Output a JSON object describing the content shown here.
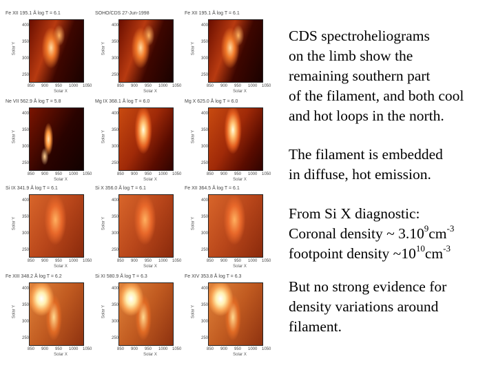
{
  "panels": [
    {
      "label": "Fe XII 195.1 Å log T = 6.1",
      "ylabel": "Solar Y",
      "yticks": [
        "400",
        "350",
        "300",
        "250"
      ],
      "xticks": [
        "850",
        "900",
        "950",
        "1000",
        "1050"
      ],
      "xlabel": "Solar X",
      "tex": "tex-dark"
    },
    {
      "label": "SOHO/CDS 27-Jun-1998",
      "ylabel": "Solar Y",
      "yticks": [
        "400",
        "350",
        "300",
        "250"
      ],
      "xticks": [
        "850",
        "900",
        "950",
        "1000",
        "1050"
      ],
      "xlabel": "Solar X",
      "tex": "tex-dark"
    },
    {
      "label": "Fe XII 195.1 Å log T = 6.1",
      "ylabel": "Solar Y",
      "yticks": [
        "400",
        "350",
        "300",
        "250"
      ],
      "xticks": [
        "850",
        "900",
        "950",
        "1000",
        "1050"
      ],
      "xlabel": "Solar X",
      "tex": "tex-dark"
    },
    {
      "label": "Ne VII 562.9 Å log T = 5.8",
      "ylabel": "Solar Y",
      "yticks": [
        "400",
        "350",
        "300",
        "250"
      ],
      "xticks": [
        "850",
        "900",
        "950",
        "1000",
        "1050"
      ],
      "xlabel": "Solar X",
      "tex": "tex-fil"
    },
    {
      "label": "Mg IX 368.1 Å log T = 6.0",
      "ylabel": "Solar Y",
      "yticks": [
        "400",
        "350",
        "300",
        "250"
      ],
      "xticks": [
        "850",
        "900",
        "950",
        "1000",
        "1050"
      ],
      "xlabel": "Solar X",
      "tex": "tex-hot"
    },
    {
      "label": "Mg X 625.0 Å log T = 6.0",
      "ylabel": "Solar Y",
      "yticks": [
        "400",
        "350",
        "300",
        "250"
      ],
      "xticks": [
        "850",
        "900",
        "950",
        "1000",
        "1050"
      ],
      "xlabel": "Solar X",
      "tex": "tex-hot"
    },
    {
      "label": "Si IX 341.9 Å log T = 6.1",
      "ylabel": "Solar Y",
      "yticks": [
        "400",
        "350",
        "300",
        "250"
      ],
      "xticks": [
        "850",
        "900",
        "950",
        "1000",
        "1050"
      ],
      "xlabel": "Solar X",
      "tex": "tex-warm"
    },
    {
      "label": "Si X 356.0 Å log T = 6.1",
      "ylabel": "Solar Y",
      "yticks": [
        "400",
        "350",
        "300",
        "250"
      ],
      "xticks": [
        "850",
        "900",
        "950",
        "1000",
        "1050"
      ],
      "xlabel": "Solar X",
      "tex": "tex-warm"
    },
    {
      "label": "Fe XII 364.5 Å log T = 6.1",
      "ylabel": "Solar Y",
      "yticks": [
        "400",
        "350",
        "300",
        "250"
      ],
      "xticks": [
        "850",
        "900",
        "950",
        "1000",
        "1050"
      ],
      "xlabel": "Solar X",
      "tex": "tex-warm"
    },
    {
      "label": "Fe XIII 348.2 Å log T = 6.2",
      "ylabel": "Solar Y",
      "yticks": [
        "400",
        "350",
        "300",
        "250"
      ],
      "xticks": [
        "850",
        "900",
        "950",
        "1000",
        "1050"
      ],
      "xlabel": "Solar X",
      "tex": "tex-bright"
    },
    {
      "label": "Si XI 580.9 Å log T = 6.3",
      "ylabel": "Solar Y",
      "yticks": [
        "400",
        "350",
        "300",
        "250"
      ],
      "xticks": [
        "850",
        "900",
        "950",
        "1000",
        "1050"
      ],
      "xlabel": "Solar X",
      "tex": "tex-bright"
    },
    {
      "label": "Fe XIV 353.8 Å log T = 6.3",
      "ylabel": "Solar Y",
      "yticks": [
        "400",
        "350",
        "300",
        "250"
      ],
      "xticks": [
        "850",
        "900",
        "950",
        "1000",
        "1050"
      ],
      "xlabel": "Solar X",
      "tex": "tex-bright"
    }
  ],
  "text": {
    "p1": [
      "CDS spectroheliograms",
      "on the limb show the",
      "remaining southern part",
      "of the filament, and both cool",
      "and hot loops in the north."
    ],
    "p2": [
      "The filament is embedded",
      "in diffuse, hot emission."
    ],
    "p3": {
      "line1": "From Si X diagnostic:",
      "line2_a": "Coronal density ~ 3.10",
      "line2_exp1": "9",
      "line2_b": "cm",
      "line2_exp2": "-3",
      "line3_a": "footpoint density ~10",
      "line3_exp1": "10",
      "line3_b": "cm",
      "line3_exp2": "-3"
    },
    "p4": [
      "But no strong evidence for",
      "density variations around",
      "filament."
    ]
  }
}
